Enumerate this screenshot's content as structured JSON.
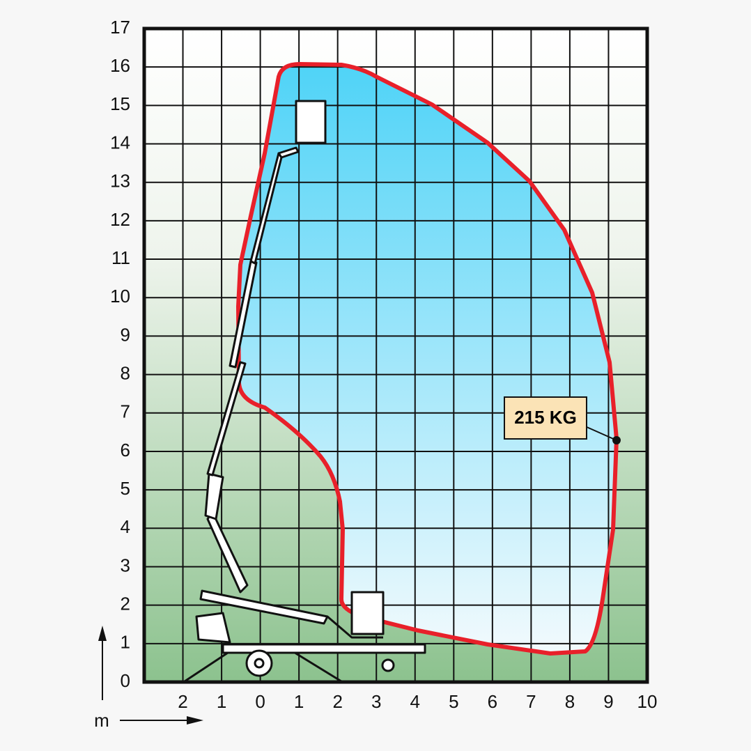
{
  "axes": {
    "y_labels": [
      "0",
      "1",
      "2",
      "3",
      "4",
      "5",
      "6",
      "7",
      "8",
      "9",
      "10",
      "11",
      "12",
      "13",
      "14",
      "15",
      "16",
      "17"
    ],
    "x_labels": [
      "2",
      "1",
      "0",
      "1",
      "2",
      "3",
      "4",
      "5",
      "6",
      "7",
      "8",
      "9",
      "10"
    ],
    "unit": "m"
  },
  "callout": "215 KG"
}
